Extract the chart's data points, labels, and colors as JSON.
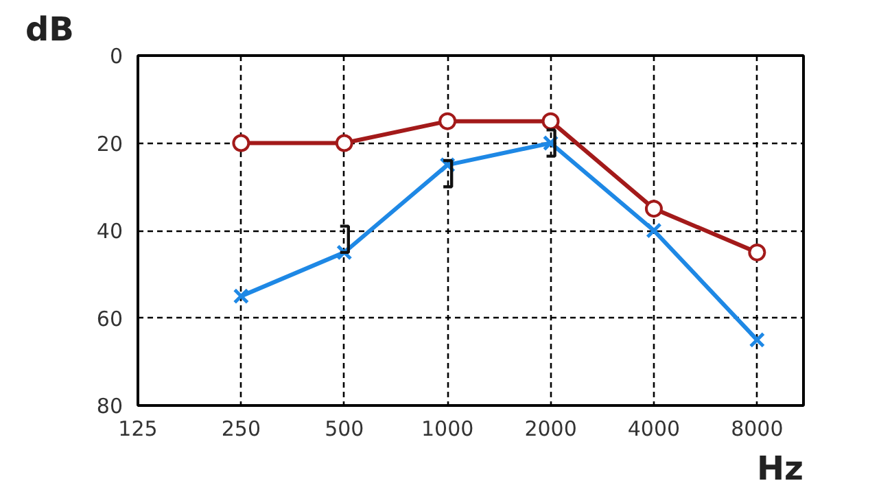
{
  "chart_data": {
    "type": "line",
    "xlabel": "Hz",
    "ylabel": "dB",
    "categories": [
      "125",
      "250",
      "500",
      "1000",
      "2000",
      "4000",
      "8000"
    ],
    "ylim": [
      80,
      0
    ],
    "yticks": [
      0,
      20,
      40,
      60,
      80
    ],
    "grid": true,
    "line_style": "solid",
    "series": [
      {
        "color": "#a31a1a",
        "marker": "circle",
        "values": [
          null,
          20,
          20,
          15,
          15,
          35,
          45
        ]
      },
      {
        "color": "#1e88e5",
        "marker": "cross",
        "values": [
          null,
          55,
          45,
          25,
          20,
          40,
          65
        ]
      },
      {
        "type": "scatter",
        "color": "#111111",
        "values": [
          null,
          null,
          42,
          27,
          20,
          null,
          null
        ]
      }
    ]
  }
}
